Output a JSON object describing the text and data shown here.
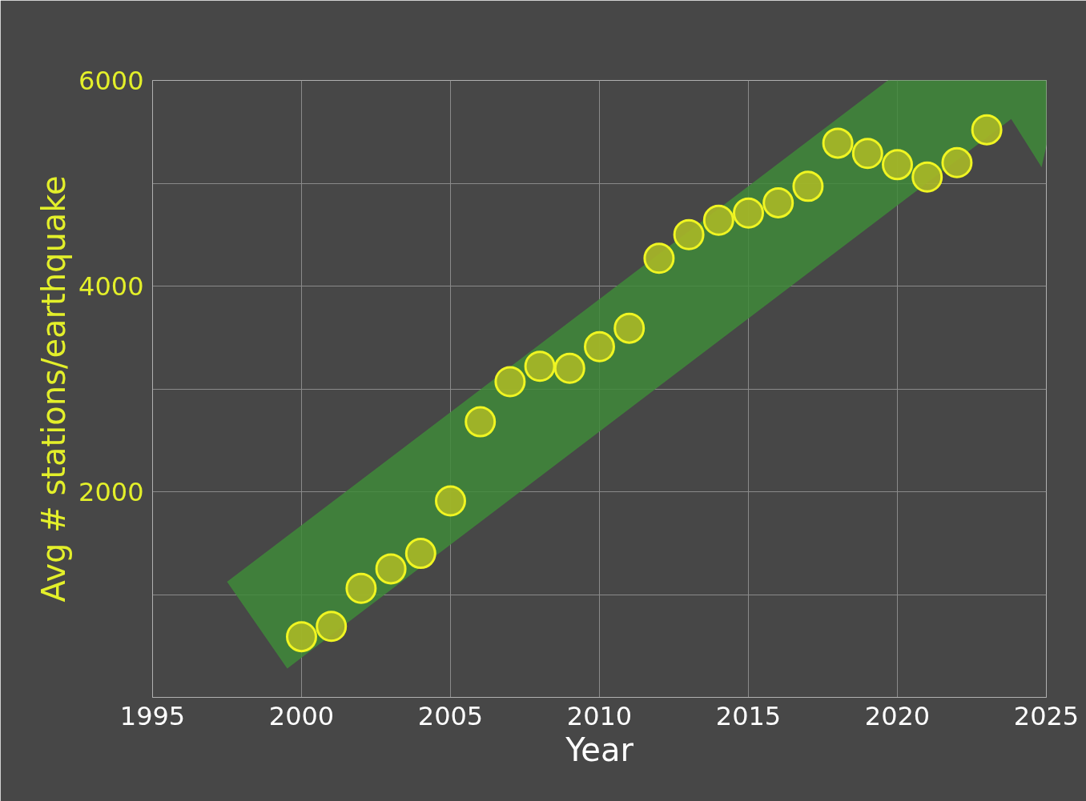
{
  "chart_data": {
    "type": "scatter",
    "xlabel": "Year",
    "ylabel": "Avg # stations/earthquake",
    "x": [
      2000,
      2001,
      2002,
      2003,
      2004,
      2005,
      2006,
      2007,
      2008,
      2009,
      2010,
      2011,
      2012,
      2013,
      2014,
      2015,
      2016,
      2017,
      2018,
      2019,
      2020,
      2021,
      2022,
      2023
    ],
    "series": [
      {
        "color": "#a9b827",
        "values": [
          590,
          690,
          1060,
          1250,
          1400,
          1910,
          2680,
          3070,
          3220,
          3200,
          3410,
          3590,
          4270,
          4500,
          4640,
          4710,
          4810,
          4970,
          5390,
          5290,
          5180,
          5060,
          5200,
          5520
        ]
      }
    ],
    "xlim": [
      1995,
      2025
    ],
    "xticks": [
      1995,
      2000,
      2005,
      2010,
      2015,
      2020,
      2025
    ],
    "ylim": [
      0,
      6000
    ],
    "yticks": [
      {
        "value": 1000,
        "label": null
      },
      2000,
      {
        "value": 3000,
        "label": null
      },
      4000,
      {
        "value": 5000,
        "label": null
      },
      6000
    ],
    "grid": true,
    "marker": "circle"
  }
}
